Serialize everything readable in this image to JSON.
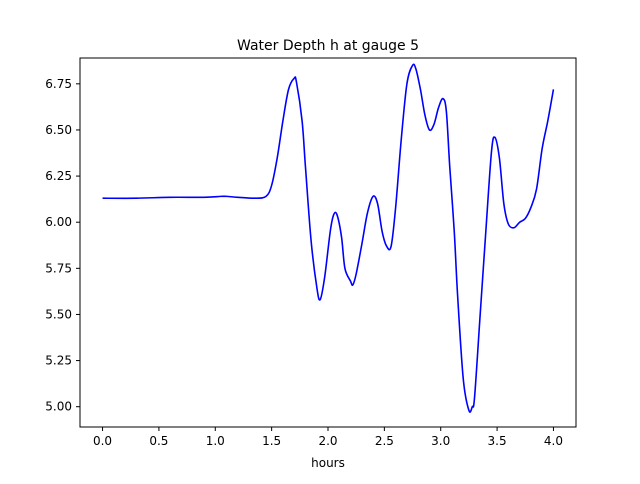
{
  "chart_data": {
    "type": "line",
    "title": "Water Depth h at gauge 5",
    "xlabel": "hours",
    "ylabel": "",
    "xlim": [
      -0.2,
      4.2
    ],
    "ylim": [
      4.89,
      6.89
    ],
    "x_ticks": [
      0.0,
      0.5,
      1.0,
      1.5,
      2.0,
      2.5,
      3.0,
      3.5,
      4.0
    ],
    "x_tick_labels": [
      "0.0",
      "0.5",
      "1.0",
      "1.5",
      "2.0",
      "2.5",
      "3.0",
      "3.5",
      "4.0"
    ],
    "y_ticks": [
      5.0,
      5.25,
      5.5,
      5.75,
      6.0,
      6.25,
      6.5,
      6.75
    ],
    "y_tick_labels": [
      "5.00",
      "5.25",
      "5.50",
      "5.75",
      "6.00",
      "6.25",
      "6.50",
      "6.75"
    ],
    "grid": false,
    "series": [
      {
        "color": "#0000ff",
        "x": [
          0.0,
          0.3,
          0.6,
          0.9,
          1.05,
          1.1,
          1.2,
          1.35,
          1.45,
          1.5,
          1.55,
          1.6,
          1.65,
          1.7,
          1.72,
          1.77,
          1.8,
          1.85,
          1.9,
          1.93,
          1.97,
          2.02,
          2.05,
          2.08,
          2.12,
          2.15,
          2.2,
          2.22,
          2.25,
          2.3,
          2.35,
          2.4,
          2.44,
          2.48,
          2.52,
          2.56,
          2.6,
          2.65,
          2.7,
          2.75,
          2.78,
          2.82,
          2.86,
          2.9,
          2.94,
          2.98,
          3.02,
          3.05,
          3.08,
          3.12,
          3.15,
          3.2,
          3.25,
          3.28,
          3.3,
          3.35,
          3.4,
          3.45,
          3.48,
          3.52,
          3.56,
          3.6,
          3.65,
          3.7,
          3.75,
          3.8,
          3.85,
          3.9,
          3.95,
          4.0
        ],
        "values": [
          6.13,
          6.13,
          6.135,
          6.135,
          6.14,
          6.14,
          6.135,
          6.13,
          6.14,
          6.2,
          6.35,
          6.55,
          6.72,
          6.78,
          6.76,
          6.55,
          6.3,
          5.9,
          5.65,
          5.58,
          5.7,
          5.95,
          6.04,
          6.04,
          5.92,
          5.75,
          5.68,
          5.66,
          5.72,
          5.88,
          6.05,
          6.14,
          6.1,
          5.95,
          5.87,
          5.87,
          6.08,
          6.45,
          6.75,
          6.85,
          6.83,
          6.72,
          6.58,
          6.5,
          6.53,
          6.62,
          6.67,
          6.6,
          6.3,
          5.95,
          5.6,
          5.15,
          4.98,
          5.0,
          5.05,
          5.5,
          5.95,
          6.38,
          6.46,
          6.35,
          6.1,
          5.99,
          5.97,
          6.0,
          6.02,
          6.08,
          6.18,
          6.4,
          6.55,
          6.72
        ]
      }
    ]
  }
}
